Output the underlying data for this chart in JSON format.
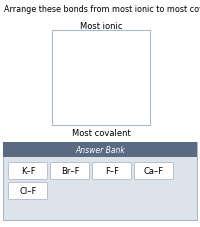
{
  "title": "Arrange these bonds from most ionic to most covalent in character.",
  "most_ionic_label": "Most ionic",
  "most_covalent_label": "Most covalent",
  "answer_bank_label": "Answer Bank",
  "answer_bank_items_row1": [
    "K–F",
    "Br–F",
    "F–F",
    "Ca–F"
  ],
  "answer_bank_items_row2": [
    "Cl–F"
  ],
  "bg_color": "#ffffff",
  "box_edge_color": "#b0b8c8",
  "answer_bank_header_color": "#5a6a82",
  "answer_bank_bg_color": "#dce3ea",
  "answer_bank_header_text_color": "#ffffff",
  "item_box_color": "#ffffff",
  "item_box_edge_color": "#b0b8c8",
  "title_fontsize": 5.8,
  "label_fontsize": 6.0,
  "item_fontsize": 6.0,
  "answer_bank_fontsize": 5.5
}
